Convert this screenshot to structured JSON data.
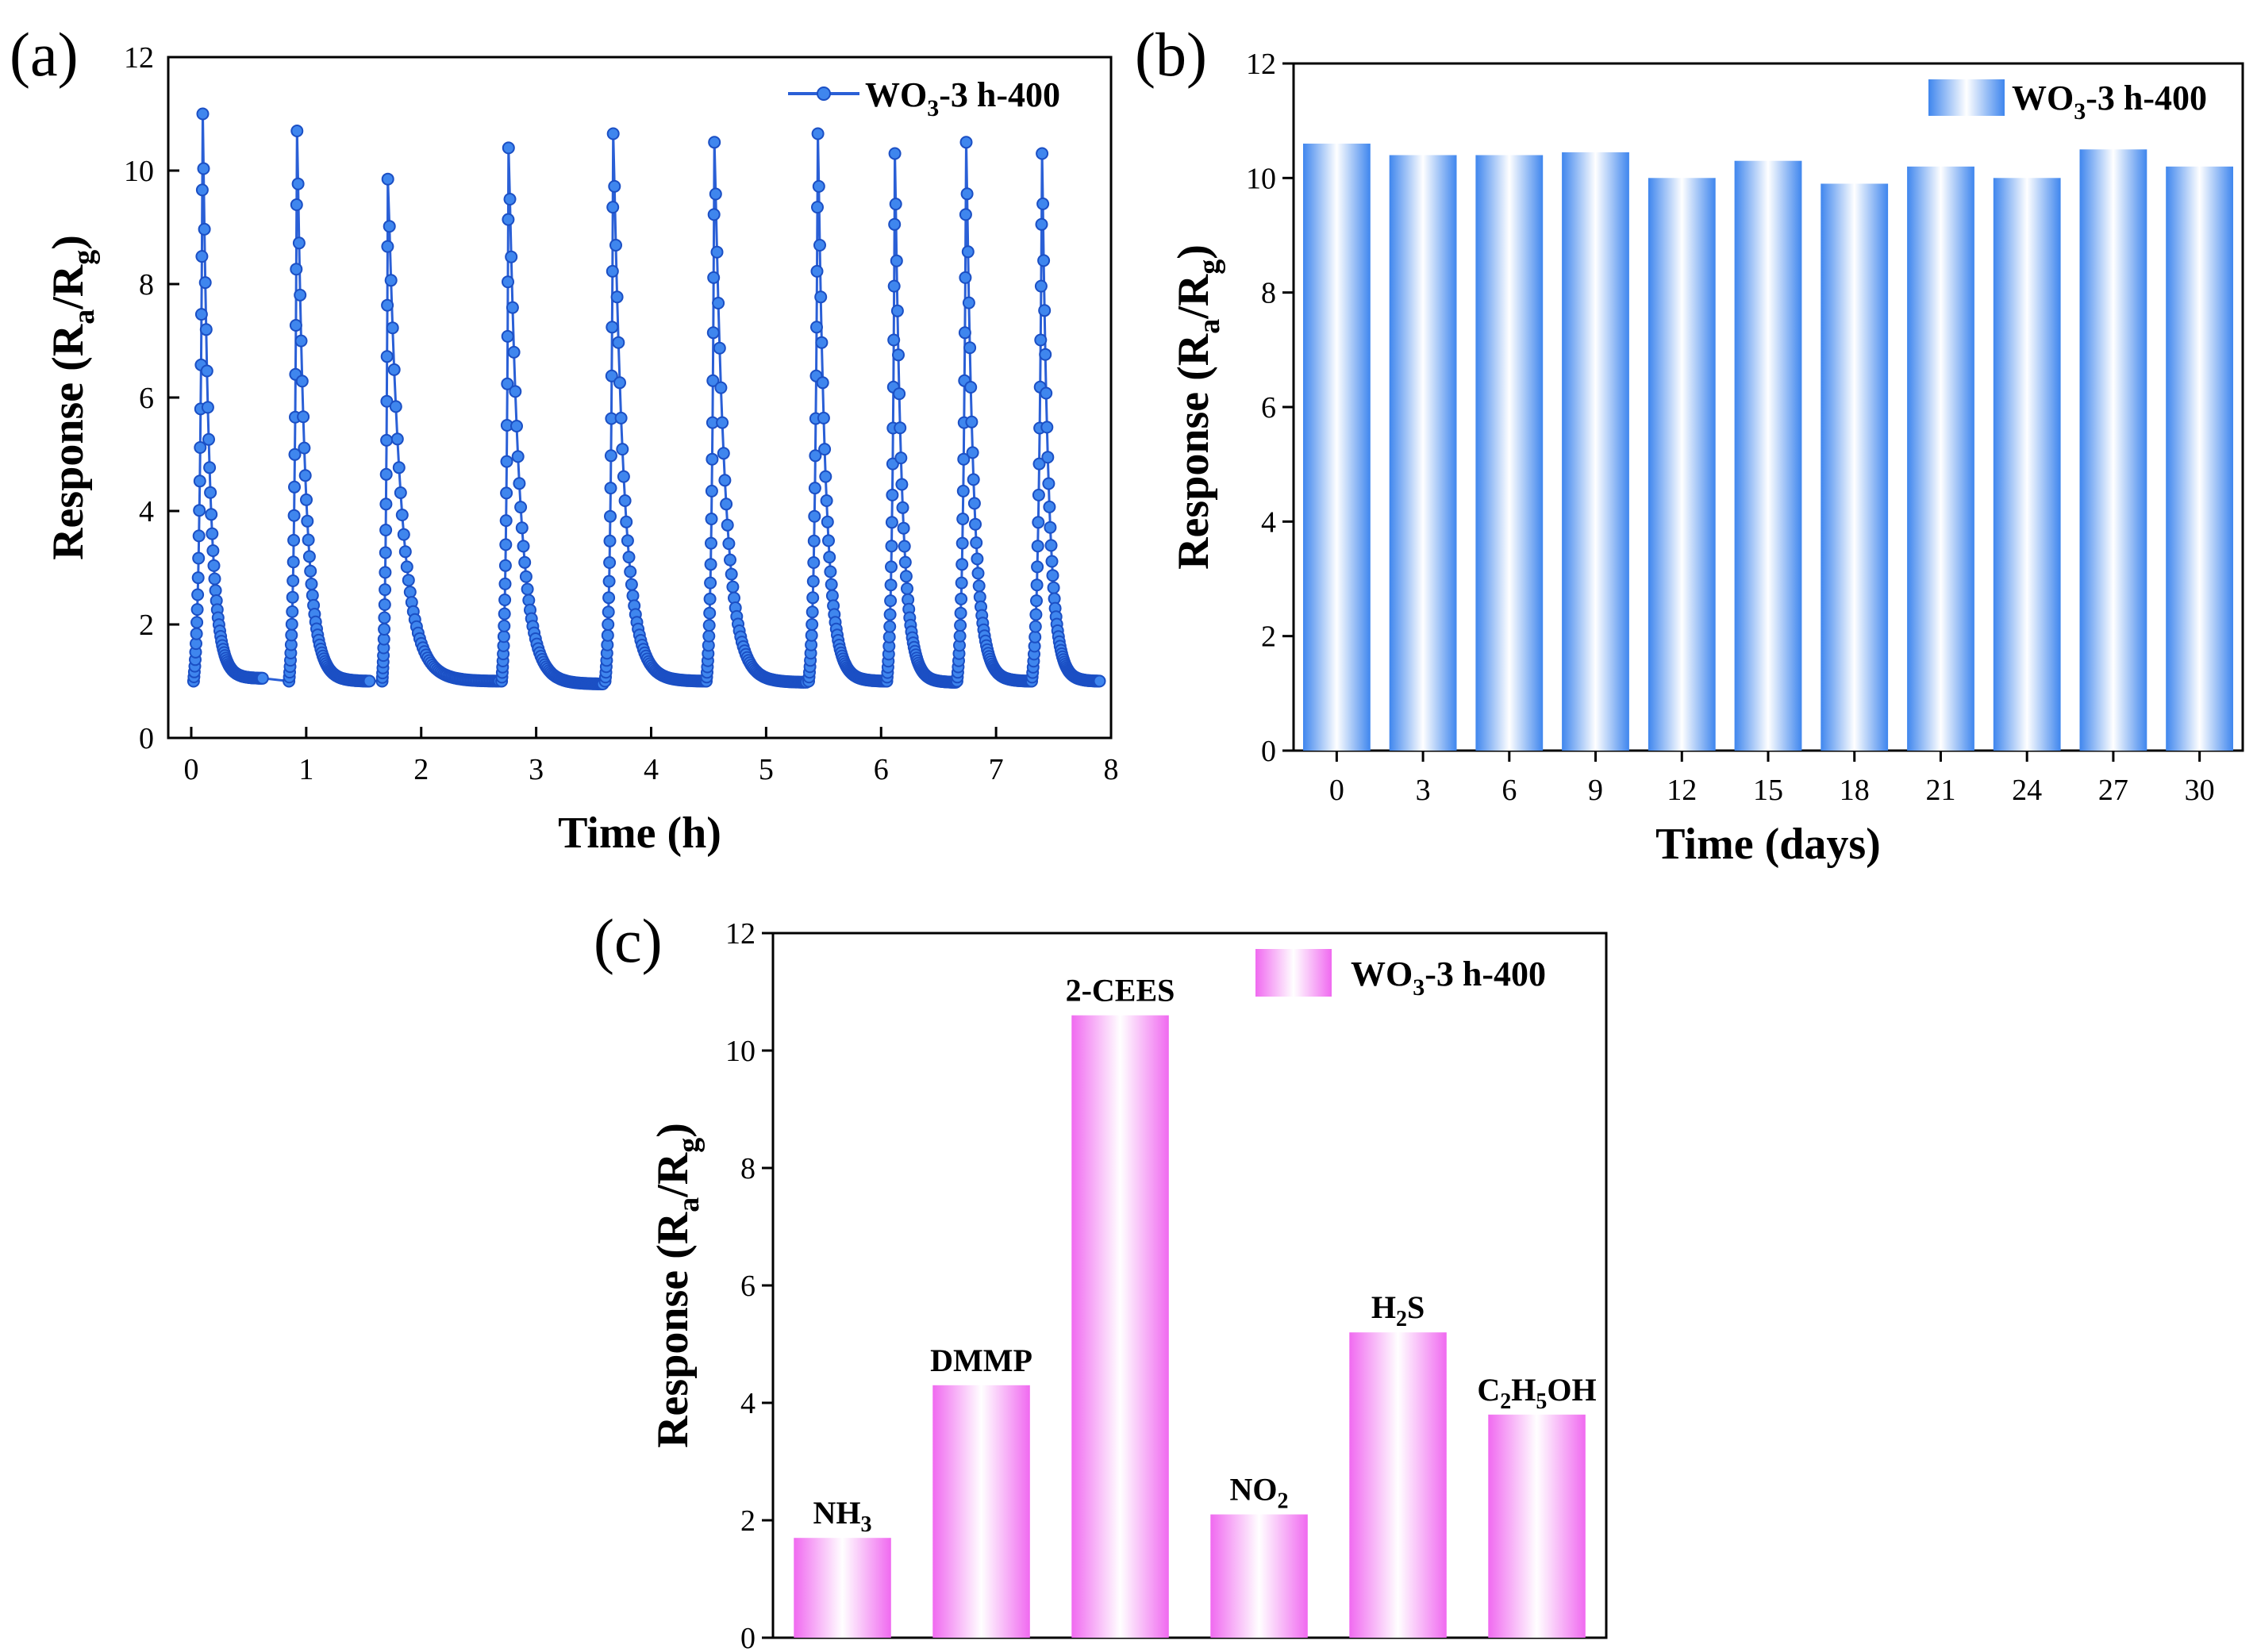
{
  "chart_data": [
    {
      "panel": "(a)",
      "type": "line",
      "xlabel": "Time (h)",
      "ylabel": {
        "main": "Response (R",
        "sub1": "a",
        "mid": "/R",
        "sub2": "g",
        "end": ")"
      },
      "xlim": [
        -0.2,
        8
      ],
      "ylim": [
        0,
        12
      ],
      "xticks": [
        0,
        1,
        2,
        3,
        4,
        5,
        6,
        7,
        8
      ],
      "yticks": [
        0,
        2,
        4,
        6,
        8,
        10,
        12
      ],
      "series_color": "#2a5fd6",
      "legend": {
        "position": "top-right",
        "main": "WO",
        "sub": "3",
        "rest": "-3 h-400"
      },
      "baseline": 1.0,
      "cycles": [
        {
          "on": 0.02,
          "peak_t": 0.1,
          "peak": 11.0,
          "off": 0.62,
          "tail": 1.05
        },
        {
          "on": 0.85,
          "peak_t": 0.92,
          "peak": 10.7,
          "off": 1.55,
          "tail": 1.0
        },
        {
          "on": 1.66,
          "peak_t": 1.71,
          "peak": 9.85,
          "off": 2.68,
          "tail": 1.0
        },
        {
          "on": 2.7,
          "peak_t": 2.76,
          "peak": 10.4,
          "off": 3.58,
          "tail": 0.95
        },
        {
          "on": 3.6,
          "peak_t": 3.67,
          "peak": 10.65,
          "off": 4.47,
          "tail": 1.0
        },
        {
          "on": 4.48,
          "peak_t": 4.55,
          "peak": 10.5,
          "off": 5.35,
          "tail": 0.98
        },
        {
          "on": 5.37,
          "peak_t": 5.45,
          "peak": 10.65,
          "off": 6.04,
          "tail": 1.0
        },
        {
          "on": 6.05,
          "peak_t": 6.12,
          "peak": 10.3,
          "off": 6.65,
          "tail": 0.98
        },
        {
          "on": 6.66,
          "peak_t": 6.74,
          "peak": 10.5,
          "off": 7.3,
          "tail": 1.0
        },
        {
          "on": 7.31,
          "peak_t": 7.4,
          "peak": 10.3,
          "off": 7.9,
          "tail": 1.0
        }
      ]
    },
    {
      "panel": "(b)",
      "type": "bar",
      "xlabel": "Time (days)",
      "ylabel": {
        "main": "Response (R",
        "sub1": "a",
        "mid": "/R",
        "sub2": "g",
        "end": ")"
      },
      "categories": [
        "0",
        "3",
        "6",
        "9",
        "12",
        "15",
        "18",
        "21",
        "24",
        "27",
        "30"
      ],
      "values": [
        10.6,
        10.4,
        10.4,
        10.45,
        10.0,
        10.3,
        9.9,
        10.2,
        10.0,
        10.5,
        10.2
      ],
      "ylim": [
        0,
        12
      ],
      "yticks": [
        0,
        2,
        4,
        6,
        8,
        10,
        12
      ],
      "bar_color": "#4a90f0",
      "legend": {
        "position": "top-right",
        "main": "WO",
        "sub": "3",
        "rest": "-3 h-400"
      }
    },
    {
      "panel": "(c)",
      "type": "bar",
      "ylabel": {
        "main": "Response (R",
        "sub1": "a",
        "mid": "/R",
        "sub2": "g",
        "end": ")"
      },
      "categories": [
        {
          "main": "NH",
          "sub": "3",
          "rest": ""
        },
        {
          "main": "DMMP",
          "sub": "",
          "rest": ""
        },
        {
          "main": "2-CEES",
          "sub": "",
          "rest": ""
        },
        {
          "main": "NO",
          "sub": "2",
          "rest": ""
        },
        {
          "main": "H",
          "sub": "2",
          "rest": "S"
        },
        {
          "main": "C",
          "sub": "2",
          "rest": "H",
          "sub2": "5",
          "rest2": "OH"
        }
      ],
      "values": [
        1.7,
        4.3,
        10.6,
        2.1,
        5.2,
        3.8
      ],
      "ylim": [
        0,
        12
      ],
      "yticks": [
        0,
        2,
        4,
        6,
        8,
        10,
        12
      ],
      "bar_color": "#f078f0",
      "legend": {
        "position": "top-right",
        "main": "WO",
        "sub": "3",
        "rest": "-3 h-400"
      }
    }
  ]
}
